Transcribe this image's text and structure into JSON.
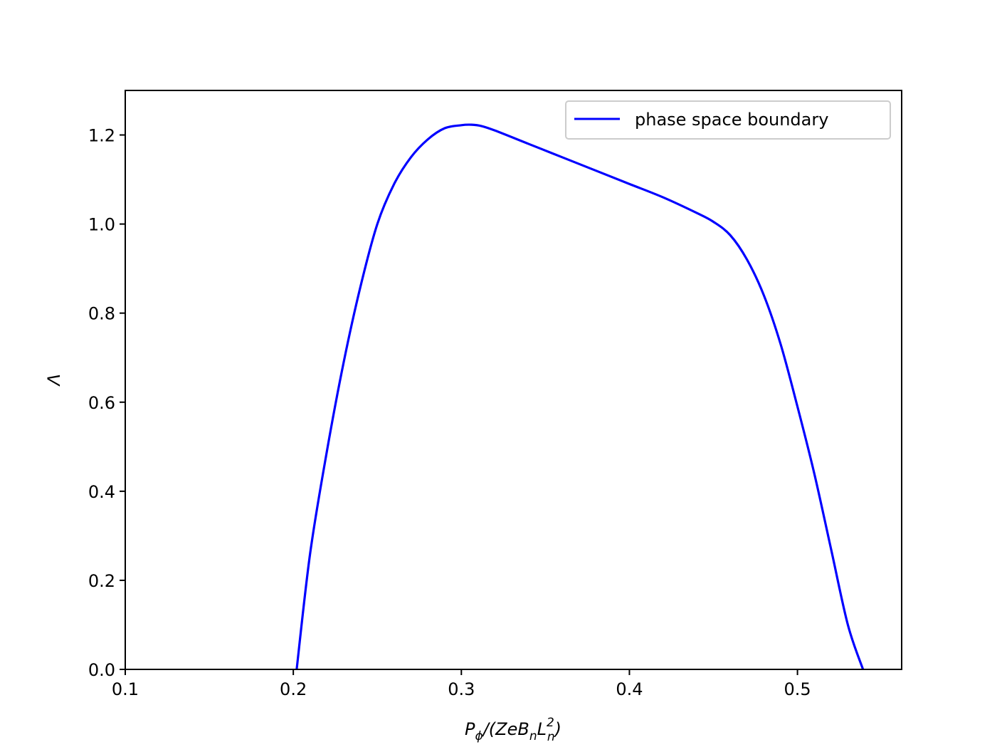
{
  "chart_data": {
    "type": "line",
    "title": "",
    "xlabel": {
      "main": "P",
      "main_sub": "ϕ",
      "paren_open": "/(ZeB",
      "b_sub": "n",
      "l": "L",
      "l_sup": "2",
      "l_sub": "n",
      "close": ")"
    },
    "ylabel": "Λ",
    "xlim": [
      0.1,
      0.562
    ],
    "ylim": [
      0.0,
      1.3
    ],
    "xticks": [
      {
        "value": 0.1,
        "label": "0.1"
      },
      {
        "value": 0.2,
        "label": "0.2"
      },
      {
        "value": 0.3,
        "label": "0.3"
      },
      {
        "value": 0.4,
        "label": "0.4"
      },
      {
        "value": 0.5,
        "label": "0.5"
      }
    ],
    "yticks": [
      {
        "value": 0.0,
        "label": "0.0"
      },
      {
        "value": 0.2,
        "label": "0.2"
      },
      {
        "value": 0.4,
        "label": "0.4"
      },
      {
        "value": 0.6,
        "label": "0.6"
      },
      {
        "value": 0.8,
        "label": "0.8"
      },
      {
        "value": 1.0,
        "label": "1.0"
      },
      {
        "value": 1.2,
        "label": "1.2"
      }
    ],
    "grid": false,
    "legend_position": "upper-right",
    "series": [
      {
        "name": "phase space boundary",
        "color": "#0000ff",
        "x": [
          0.202,
          0.21,
          0.22,
          0.23,
          0.24,
          0.25,
          0.26,
          0.27,
          0.28,
          0.29,
          0.3,
          0.306,
          0.312,
          0.32,
          0.34,
          0.36,
          0.38,
          0.4,
          0.42,
          0.44,
          0.45,
          0.46,
          0.47,
          0.48,
          0.49,
          0.5,
          0.51,
          0.52,
          0.53,
          0.539
        ],
        "y": [
          0.0,
          0.26,
          0.49,
          0.69,
          0.86,
          1.0,
          1.09,
          1.15,
          1.19,
          1.215,
          1.222,
          1.223,
          1.22,
          1.21,
          1.18,
          1.15,
          1.12,
          1.09,
          1.06,
          1.025,
          1.005,
          0.975,
          0.92,
          0.84,
          0.73,
          0.59,
          0.44,
          0.27,
          0.1,
          0.0
        ]
      }
    ]
  }
}
